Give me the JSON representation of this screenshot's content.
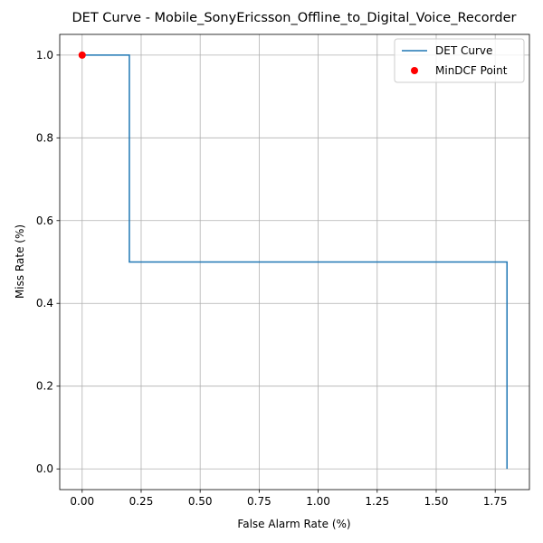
{
  "chart_data": {
    "type": "line",
    "title": "DET Curve - Mobile_SonyEricsson_Offline_to_Digital_Voice_Recorder",
    "xlabel": "False Alarm Rate (%)",
    "ylabel": "Miss Rate (%)",
    "xlim": [
      -0.095,
      1.895
    ],
    "ylim": [
      -0.05,
      1.05
    ],
    "xticks": [
      0.0,
      0.25,
      0.5,
      0.75,
      1.0,
      1.25,
      1.5,
      1.75
    ],
    "xtick_labels": [
      "0.00",
      "0.25",
      "0.50",
      "0.75",
      "1.00",
      "1.25",
      "1.50",
      "1.75"
    ],
    "yticks": [
      0.0,
      0.2,
      0.4,
      0.6,
      0.8,
      1.0
    ],
    "ytick_labels": [
      "0.0",
      "0.2",
      "0.4",
      "0.6",
      "0.8",
      "1.0"
    ],
    "grid": true,
    "legend_position": "top-right",
    "series": [
      {
        "name": "DET Curve",
        "kind": "line",
        "color": "#1f77b4",
        "x": [
          0.0,
          0.2,
          0.2,
          1.8,
          1.8
        ],
        "y": [
          1.0,
          1.0,
          0.5,
          0.5,
          0.0
        ]
      },
      {
        "name": "MinDCF Point",
        "kind": "scatter",
        "color": "#ff0000",
        "x": [
          0.0
        ],
        "y": [
          1.0
        ]
      }
    ]
  }
}
